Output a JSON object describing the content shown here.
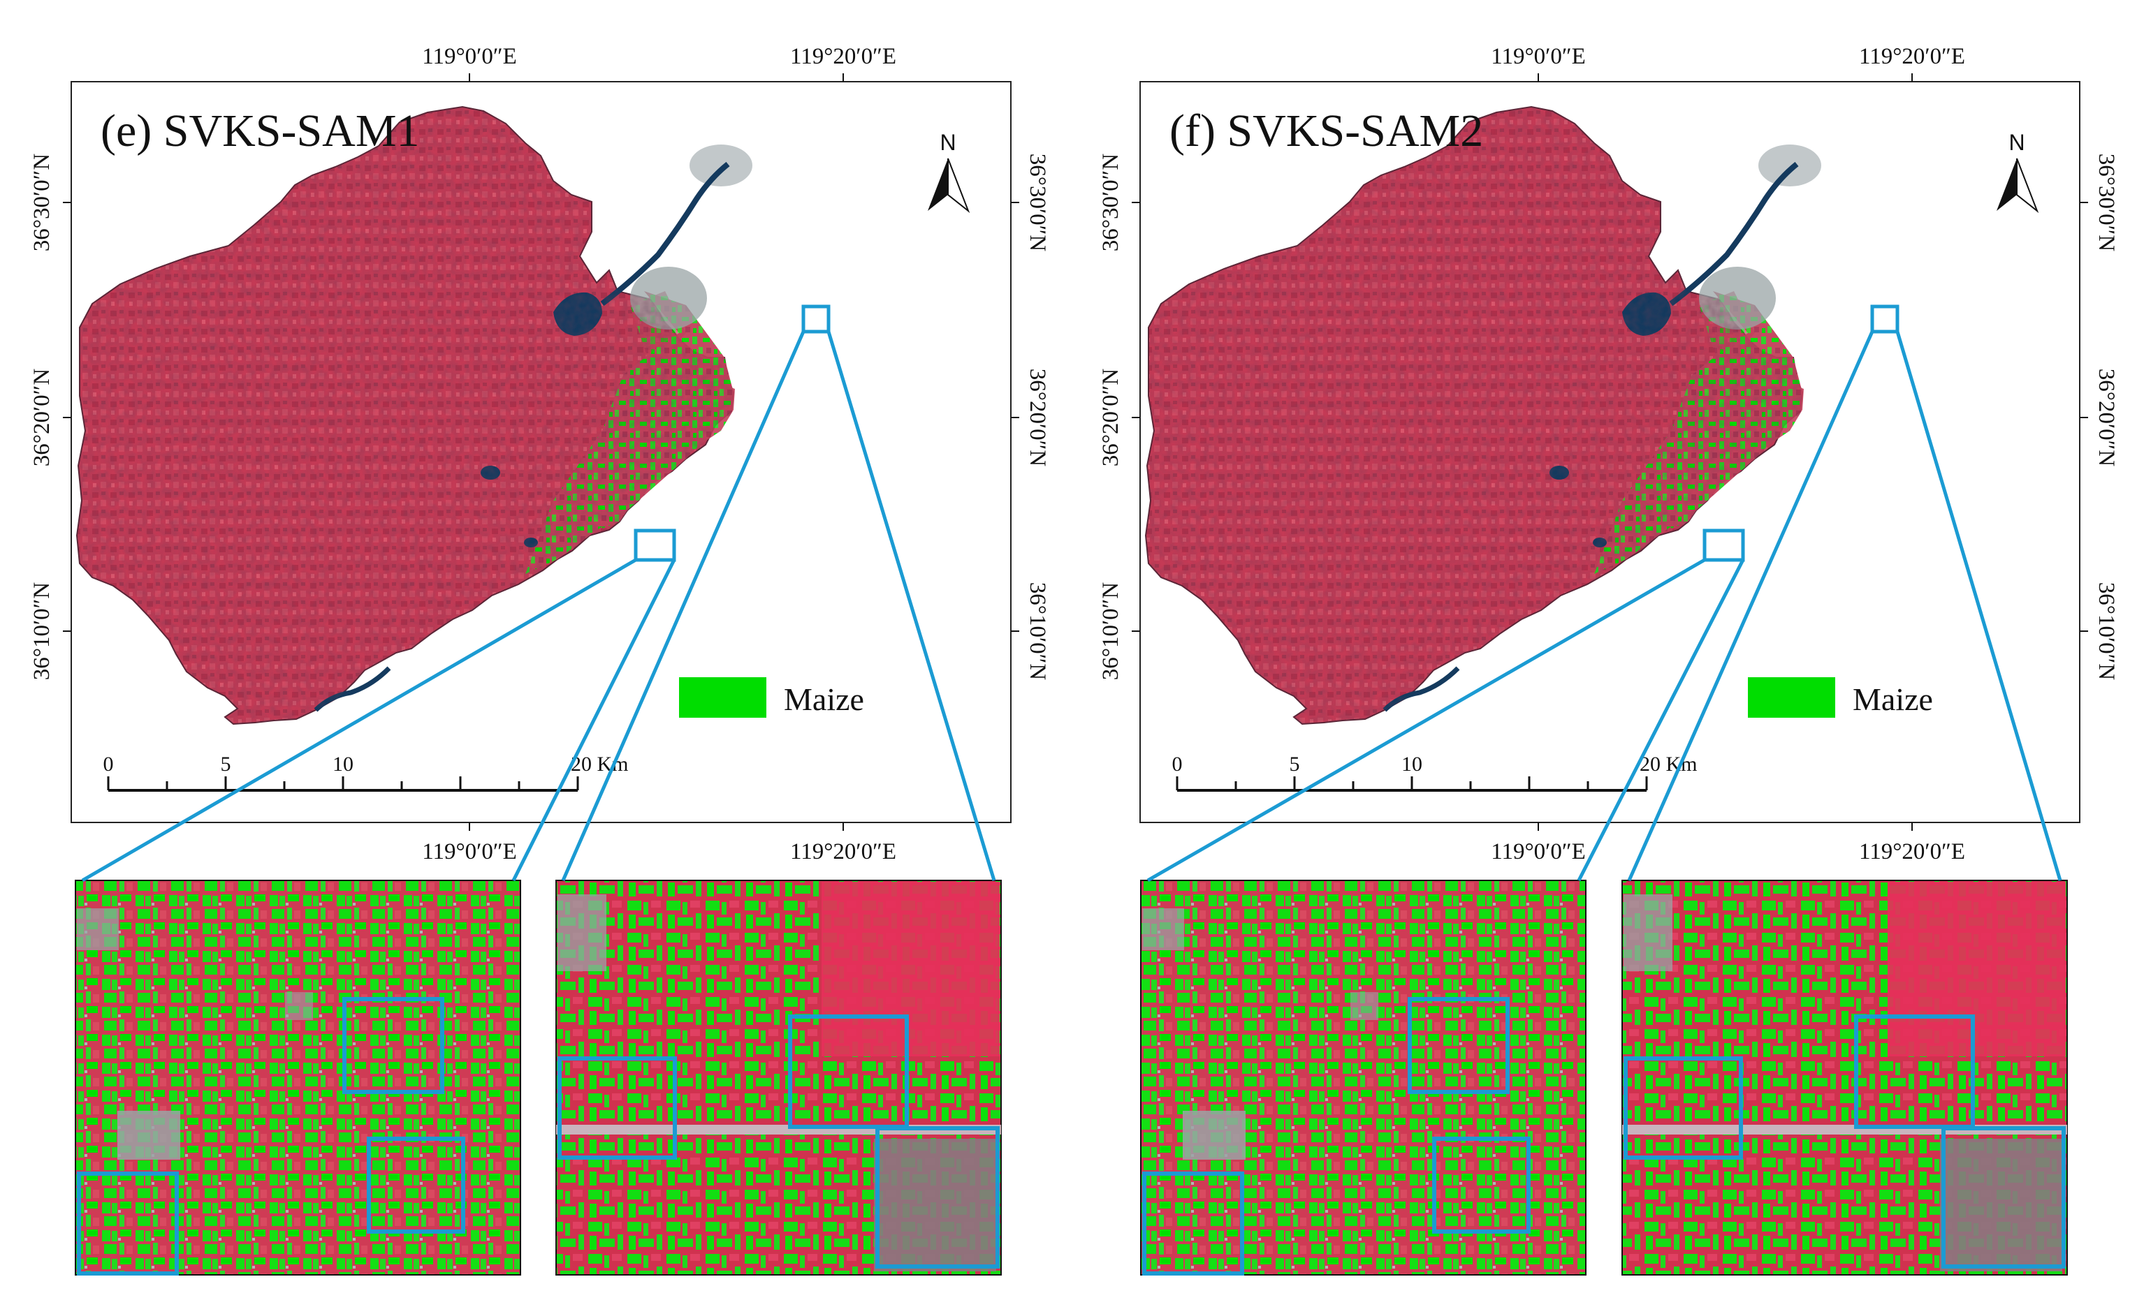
{
  "colors": {
    "maize": "#00dd00",
    "highlight": "#1b9bd3",
    "crop_red": "#c43a55",
    "crop_red_dark": "#9a2a45",
    "crop_red_bright": "#e5305a",
    "water": "#143a5e",
    "urban": "#9aa4a6",
    "frame": "#222222"
  },
  "panels": [
    {
      "title": "(e) SVKS-SAM1",
      "top_axis_labels": [
        "119°0′0″E",
        "119°20′0″E"
      ],
      "bottom_axis_labels": [
        "119°0′0″E",
        "119°20′0″E"
      ],
      "right_axis_labels": [
        "36°30′0″N",
        "36°20′0″N",
        "36°10′0″N"
      ],
      "north_label": "N",
      "legend_label": "Maize",
      "scale_ticks": [
        "0",
        "5",
        "10",
        "20 Km"
      ]
    },
    {
      "title": "(f) SVKS-SAM2",
      "top_axis_labels": [
        "119°0′0″E",
        "119°20′0″E"
      ],
      "bottom_axis_labels": [
        "119°0′0″E",
        "119°20′0″E"
      ],
      "right_axis_labels": [
        "36°30′0″N",
        "36°20′0″N",
        "36°10′0″N"
      ],
      "north_label": "N",
      "legend_label": "Maize",
      "scale_ticks": [
        "0",
        "5",
        "10",
        "20 Km"
      ]
    }
  ],
  "left_axis_labels": [
    "36°30′0″N",
    "36°20′0″N",
    "36°10′0″N"
  ]
}
